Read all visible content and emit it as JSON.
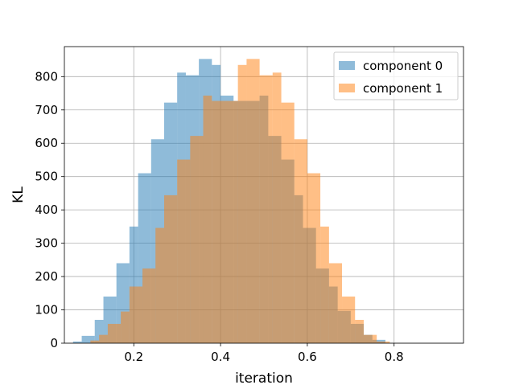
{
  "chart_data": {
    "type": "histogram",
    "title": "",
    "xlabel": "iteration",
    "ylabel": "KL",
    "xlim": [
      0.04,
      0.96
    ],
    "ylim": [
      0,
      890
    ],
    "x_ticks": [
      0.2,
      0.4,
      0.6,
      0.8
    ],
    "x_tick_labels": [
      "0.2",
      "0.4",
      "0.6",
      "0.8"
    ],
    "y_ticks": [
      0,
      100,
      200,
      300,
      400,
      500,
      600,
      700,
      800
    ],
    "y_tick_labels": [
      "0",
      "100",
      "200",
      "300",
      "400",
      "500",
      "600",
      "700",
      "800"
    ],
    "grid": true,
    "legend_position": "top-right",
    "series": [
      {
        "name": "component 0",
        "color": "#1f77b4",
        "alpha": 0.5,
        "bins": [
          {
            "x0": 0.06,
            "x1": 0.08,
            "value": 5
          },
          {
            "x0": 0.08,
            "x1": 0.11,
            "value": 22
          },
          {
            "x0": 0.11,
            "x1": 0.13,
            "value": 70
          },
          {
            "x0": 0.13,
            "x1": 0.16,
            "value": 140
          },
          {
            "x0": 0.16,
            "x1": 0.19,
            "value": 240
          },
          {
            "x0": 0.19,
            "x1": 0.21,
            "value": 350
          },
          {
            "x0": 0.21,
            "x1": 0.24,
            "value": 510
          },
          {
            "x0": 0.24,
            "x1": 0.27,
            "value": 612
          },
          {
            "x0": 0.27,
            "x1": 0.3,
            "value": 722
          },
          {
            "x0": 0.3,
            "x1": 0.32,
            "value": 812
          },
          {
            "x0": 0.32,
            "x1": 0.35,
            "value": 804
          },
          {
            "x0": 0.35,
            "x1": 0.38,
            "value": 853
          },
          {
            "x0": 0.38,
            "x1": 0.4,
            "value": 835
          },
          {
            "x0": 0.4,
            "x1": 0.43,
            "value": 743
          },
          {
            "x0": 0.43,
            "x1": 0.46,
            "value": 727
          },
          {
            "x0": 0.46,
            "x1": 0.49,
            "value": 727
          },
          {
            "x0": 0.49,
            "x1": 0.51,
            "value": 743
          },
          {
            "x0": 0.51,
            "x1": 0.54,
            "value": 622
          },
          {
            "x0": 0.54,
            "x1": 0.57,
            "value": 551
          },
          {
            "x0": 0.57,
            "x1": 0.59,
            "value": 444
          },
          {
            "x0": 0.59,
            "x1": 0.62,
            "value": 346
          },
          {
            "x0": 0.62,
            "x1": 0.65,
            "value": 224
          },
          {
            "x0": 0.65,
            "x1": 0.67,
            "value": 170
          },
          {
            "x0": 0.67,
            "x1": 0.7,
            "value": 97
          },
          {
            "x0": 0.7,
            "x1": 0.73,
            "value": 58
          },
          {
            "x0": 0.73,
            "x1": 0.75,
            "value": 25
          },
          {
            "x0": 0.75,
            "x1": 0.78,
            "value": 10
          }
        ]
      },
      {
        "name": "component 1",
        "color": "#ff7f0e",
        "alpha": 0.5,
        "bins": [
          {
            "x0": 0.1,
            "x1": 0.12,
            "value": 8
          },
          {
            "x0": 0.12,
            "x1": 0.14,
            "value": 25
          },
          {
            "x0": 0.14,
            "x1": 0.17,
            "value": 58
          },
          {
            "x0": 0.17,
            "x1": 0.19,
            "value": 95
          },
          {
            "x0": 0.19,
            "x1": 0.22,
            "value": 170
          },
          {
            "x0": 0.22,
            "x1": 0.25,
            "value": 224
          },
          {
            "x0": 0.25,
            "x1": 0.27,
            "value": 346
          },
          {
            "x0": 0.27,
            "x1": 0.3,
            "value": 444
          },
          {
            "x0": 0.3,
            "x1": 0.33,
            "value": 551
          },
          {
            "x0": 0.33,
            "x1": 0.36,
            "value": 622
          },
          {
            "x0": 0.36,
            "x1": 0.38,
            "value": 743
          },
          {
            "x0": 0.38,
            "x1": 0.41,
            "value": 727
          },
          {
            "x0": 0.41,
            "x1": 0.44,
            "value": 727
          },
          {
            "x0": 0.44,
            "x1": 0.46,
            "value": 835
          },
          {
            "x0": 0.46,
            "x1": 0.49,
            "value": 853
          },
          {
            "x0": 0.49,
            "x1": 0.52,
            "value": 804
          },
          {
            "x0": 0.52,
            "x1": 0.54,
            "value": 812
          },
          {
            "x0": 0.54,
            "x1": 0.57,
            "value": 722
          },
          {
            "x0": 0.57,
            "x1": 0.6,
            "value": 612
          },
          {
            "x0": 0.6,
            "x1": 0.63,
            "value": 510
          },
          {
            "x0": 0.63,
            "x1": 0.65,
            "value": 350
          },
          {
            "x0": 0.65,
            "x1": 0.68,
            "value": 240
          },
          {
            "x0": 0.68,
            "x1": 0.71,
            "value": 140
          },
          {
            "x0": 0.71,
            "x1": 0.73,
            "value": 70
          },
          {
            "x0": 0.73,
            "x1": 0.76,
            "value": 25
          },
          {
            "x0": 0.76,
            "x1": 0.79,
            "value": 5
          }
        ]
      }
    ]
  }
}
